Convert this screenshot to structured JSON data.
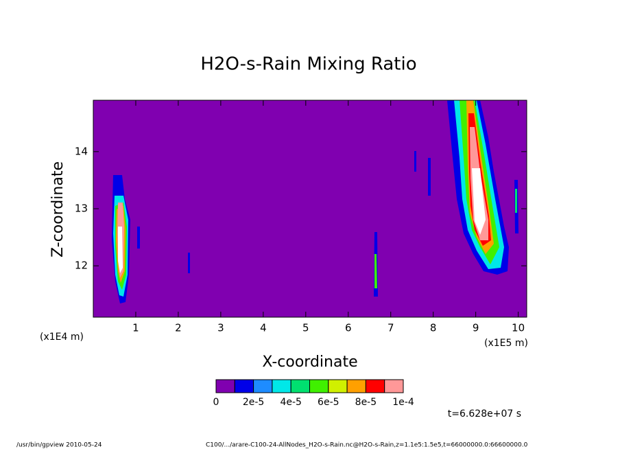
{
  "chart_data": {
    "type": "contour",
    "title": "H2O-s-Rain Mixing Ratio",
    "x_label": "X-coordinate",
    "y_label": "Z-coordinate",
    "x_unit_label": "(x1E5 m)",
    "y_unit_label": "(x1E4 m)",
    "xlim": [
      0,
      10.2
    ],
    "xticks": [
      1,
      2,
      3,
      4,
      5,
      6,
      7,
      8,
      9,
      10
    ],
    "ylim": [
      11.1,
      14.9
    ],
    "yticks": [
      12,
      13,
      14
    ],
    "colors": [
      "#8000b0",
      "#0000e8",
      "#1e8cff",
      "#00e8e8",
      "#00e070",
      "#40f000",
      "#d0f000",
      "#ffa000",
      "#ff0000",
      "#ff9898"
    ],
    "colorbar_lim": [
      0,
      0.0001
    ],
    "colorbar_ticks": [
      0,
      {
        "value": 2e-05,
        "label": "2e-5"
      },
      {
        "value": 4e-05,
        "label": "4e-5"
      },
      {
        "value": 6e-05,
        "label": "6e-5"
      },
      {
        "value": 8e-05,
        "label": "8e-5"
      },
      {
        "value": 0.0001,
        "label": "1e-4"
      }
    ],
    "time_label": "t=6.628e+07 s",
    "footer_left": "/usr/bin/gpview  2010-05-24",
    "footer_right": "C100/.../arare-C100-24-AllNodes_H2O-s-Rain.nc@H2O-s-Rain,z=1.1e5:1.5e5,t=66000000.0:66600000.0"
  }
}
